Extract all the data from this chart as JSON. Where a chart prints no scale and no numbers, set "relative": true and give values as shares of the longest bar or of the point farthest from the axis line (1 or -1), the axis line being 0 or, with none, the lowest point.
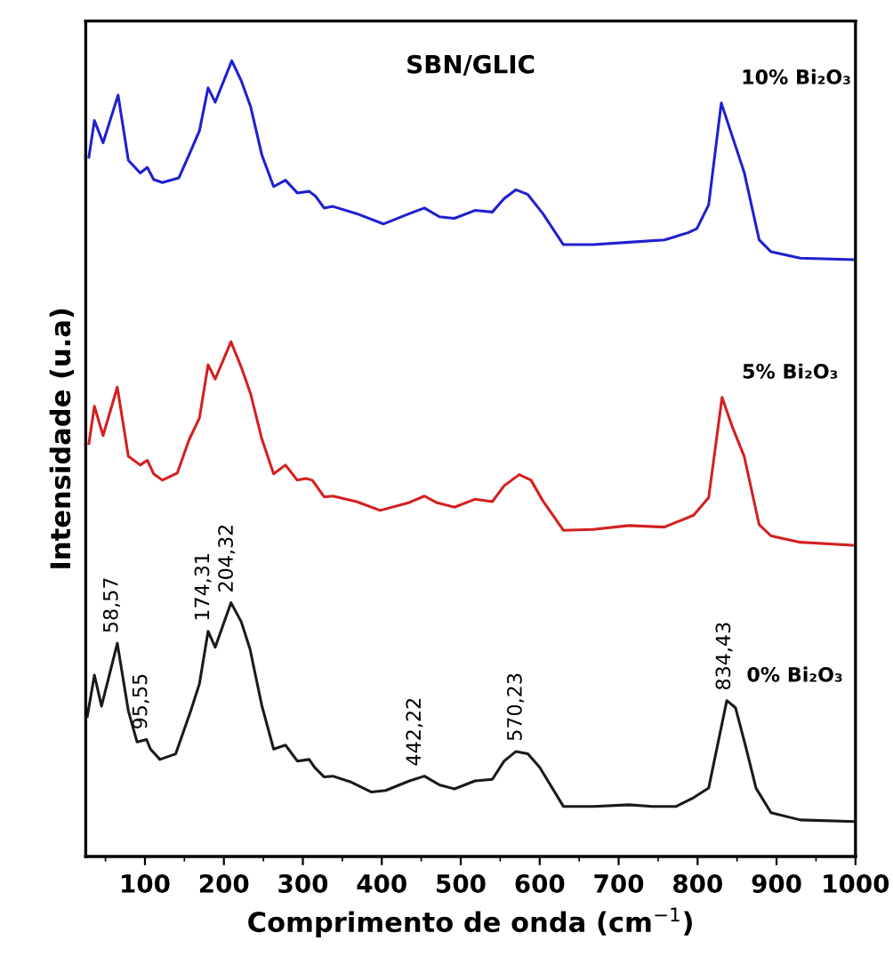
{
  "chart_data": {
    "type": "line",
    "title": "SBN/GLIC",
    "xlabel": "Comprimento de onda (cm$^{−1}$)",
    "ylabel": "Intensidade (u.a)",
    "relative": true,
    "xlim": [
      25,
      1000
    ],
    "xticks": [
      100,
      200,
      300,
      400,
      500,
      600,
      700,
      800,
      900,
      1000
    ],
    "grid": false,
    "legend": false,
    "marker": "none",
    "line_style": "solid",
    "series": [
      {
        "name": "10% Bi₂O₃",
        "color": "#2020d0",
        "x": [
          29,
          36,
          47,
          66,
          79,
          94,
          103,
          111,
          122,
          143,
          156,
          169,
          180,
          189,
          210,
          222,
          234,
          248,
          263,
          278,
          293,
          308,
          316,
          327,
          338,
          368,
          402,
          435,
          454,
          473,
          492,
          518,
          540,
          555,
          570,
          585,
          604,
          630,
          668,
          713,
          758,
          788,
          799,
          814,
          830,
          844,
          859,
          878,
          893,
          930,
          1000
        ],
        "values": [
          0.879,
          0.925,
          0.897,
          0.957,
          0.875,
          0.859,
          0.866,
          0.851,
          0.847,
          0.853,
          0.882,
          0.912,
          0.966,
          0.948,
          1.0,
          0.975,
          0.942,
          0.882,
          0.842,
          0.85,
          0.834,
          0.836,
          0.83,
          0.815,
          0.817,
          0.808,
          0.795,
          0.808,
          0.815,
          0.804,
          0.802,
          0.812,
          0.81,
          0.827,
          0.838,
          0.832,
          0.808,
          0.769,
          0.769,
          0.772,
          0.775,
          0.784,
          0.789,
          0.819,
          0.947,
          0.905,
          0.86,
          0.775,
          0.76,
          0.752,
          0.75
        ]
      },
      {
        "name": "5% Bi₂O₃",
        "color": "#d42020",
        "x": [
          29,
          36,
          47,
          65,
          79,
          94,
          103,
          111,
          122,
          141,
          156,
          169,
          180,
          189,
          209,
          222,
          234,
          248,
          263,
          278,
          293,
          304,
          312,
          327,
          338,
          368,
          398,
          435,
          454,
          469,
          492,
          518,
          540,
          555,
          574,
          589,
          604,
          630,
          668,
          713,
          758,
          795,
          814,
          831,
          844,
          859,
          878,
          893,
          930,
          1000
        ],
        "values": [
          0.519,
          0.566,
          0.529,
          0.59,
          0.503,
          0.492,
          0.498,
          0.481,
          0.473,
          0.482,
          0.524,
          0.551,
          0.618,
          0.6,
          0.647,
          0.615,
          0.581,
          0.525,
          0.481,
          0.492,
          0.473,
          0.475,
          0.473,
          0.452,
          0.453,
          0.446,
          0.435,
          0.445,
          0.453,
          0.445,
          0.439,
          0.449,
          0.446,
          0.466,
          0.48,
          0.473,
          0.447,
          0.41,
          0.411,
          0.416,
          0.414,
          0.429,
          0.451,
          0.577,
          0.54,
          0.503,
          0.417,
          0.403,
          0.395,
          0.391
        ]
      },
      {
        "name": "0% Bi₂O₃",
        "color": "#1a1a1a",
        "x": [
          27,
          36,
          45,
          65,
          79,
          90,
          102,
          107,
          119,
          139,
          158,
          169,
          180,
          189,
          209,
          222,
          233,
          248,
          263,
          278,
          293,
          308,
          315,
          327,
          338,
          360,
          387,
          405,
          435,
          454,
          473,
          492,
          518,
          540,
          555,
          570,
          585,
          600,
          630,
          668,
          713,
          743,
          773,
          795,
          814,
          837,
          848,
          861,
          874,
          893,
          930,
          1000
        ],
        "values": [
          0.176,
          0.228,
          0.189,
          0.268,
          0.183,
          0.144,
          0.147,
          0.135,
          0.122,
          0.129,
          0.183,
          0.217,
          0.283,
          0.263,
          0.319,
          0.295,
          0.261,
          0.19,
          0.135,
          0.14,
          0.12,
          0.122,
          0.112,
          0.1,
          0.101,
          0.094,
          0.081,
          0.083,
          0.095,
          0.101,
          0.09,
          0.085,
          0.095,
          0.097,
          0.12,
          0.132,
          0.129,
          0.112,
          0.063,
          0.063,
          0.065,
          0.063,
          0.063,
          0.074,
          0.086,
          0.196,
          0.187,
          0.138,
          0.086,
          0.055,
          0.046,
          0.044
        ]
      }
    ],
    "annotations": [
      {
        "text": "58,57",
        "x": 58.57,
        "y": 0.268
      },
      {
        "text": "95,55",
        "x": 95.55,
        "y": 0.147
      },
      {
        "text": "174,31",
        "x": 174.31,
        "y": 0.283
      },
      {
        "text": "204,32",
        "x": 204.32,
        "y": 0.319
      },
      {
        "text": "442,22",
        "x": 442.22,
        "y": 0.101
      },
      {
        "text": "570,23",
        "x": 570.23,
        "y": 0.132
      },
      {
        "text": "834,43",
        "x": 834.43,
        "y": 0.196
      }
    ]
  }
}
